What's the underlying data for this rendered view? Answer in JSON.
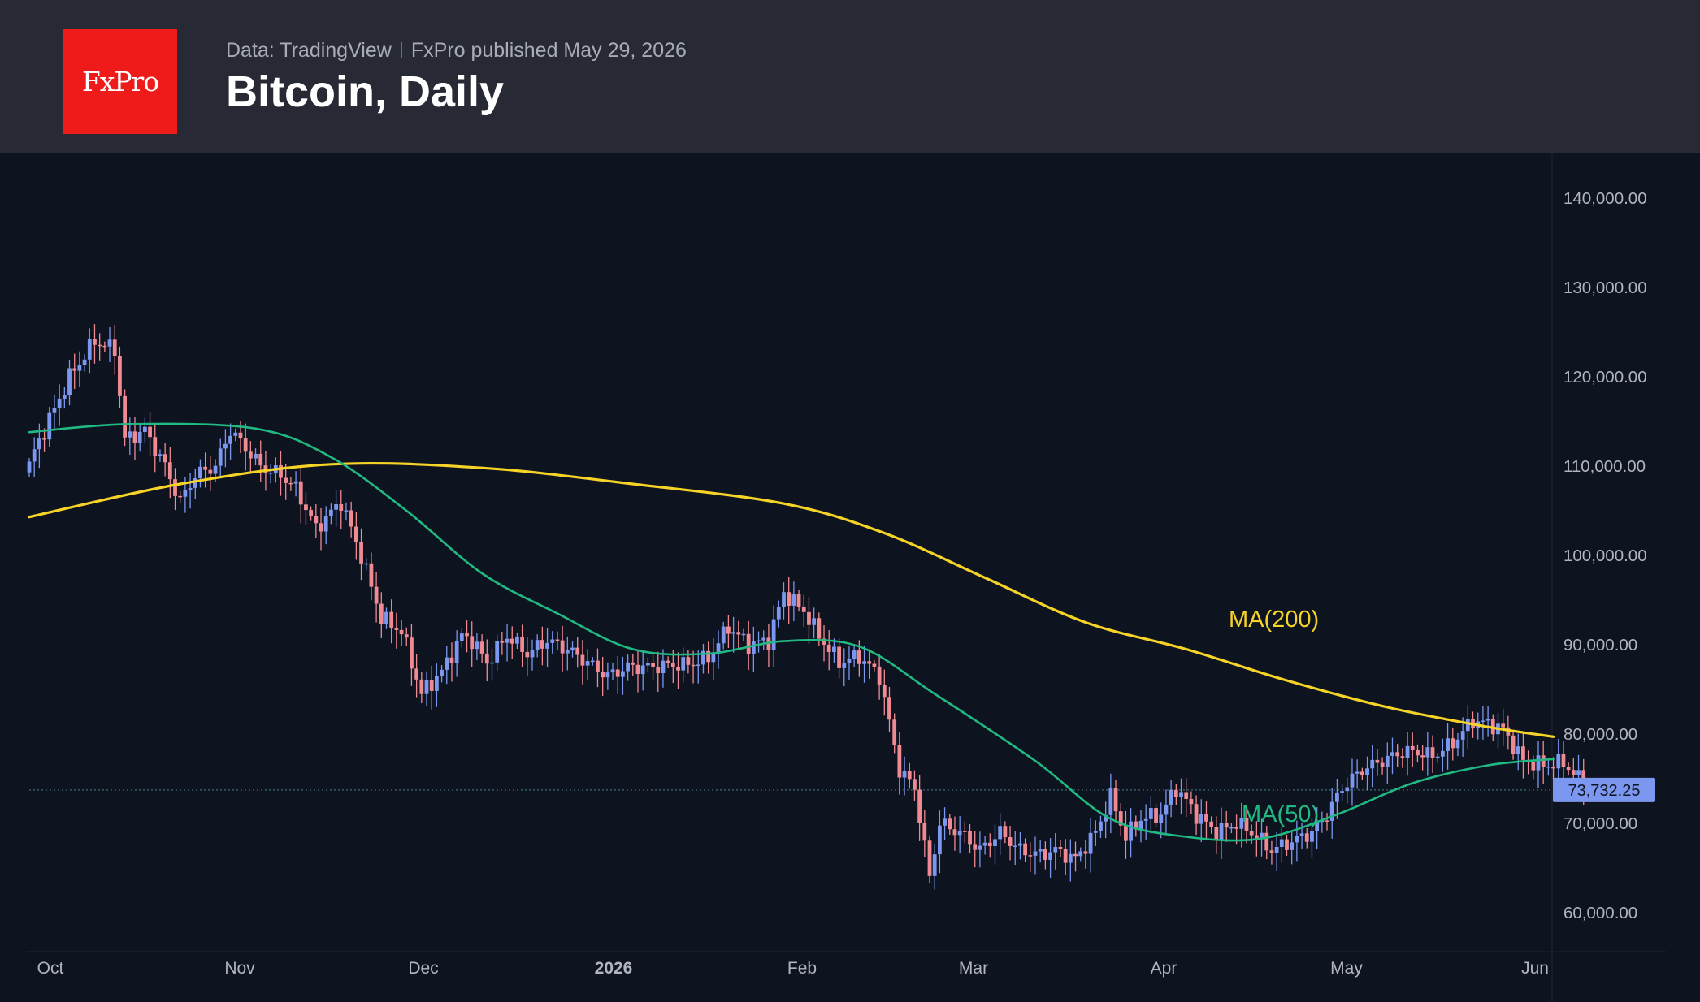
{
  "header": {
    "logo_text": "FxPro",
    "source": "Data: TradingView",
    "published": "FxPro published May 29, 2026",
    "title": "Bitcoin, Daily"
  },
  "colors": {
    "background": "#0e1320",
    "header_bg": "#272a35",
    "logo_bg": "#ef1a1a",
    "candle_up": "#7b97f0",
    "candle_down": "#f08a92",
    "ma200": "#f5d327",
    "ma50": "#21b982",
    "last_price_bg": "#7b97f0"
  },
  "chart_data": {
    "type": "candlestick",
    "symbol": "Bitcoin",
    "timeframe": "Daily",
    "ylim": [
      50000,
      145000
    ],
    "y_ticks": [
      "140,000.00",
      "130,000.00",
      "120,000.00",
      "110,000.00",
      "100,000.00",
      "90,000.00",
      "80,000.00",
      "70,000.00",
      "60,000.00"
    ],
    "x_ticks": [
      {
        "label": "Oct",
        "bold": false
      },
      {
        "label": "Nov",
        "bold": false
      },
      {
        "label": "Dec",
        "bold": false
      },
      {
        "label": "2026",
        "bold": true
      },
      {
        "label": "Feb",
        "bold": false
      },
      {
        "label": "Mar",
        "bold": false
      },
      {
        "label": "Apr",
        "bold": false
      },
      {
        "label": "May",
        "bold": false
      },
      {
        "label": "Jun",
        "bold": false
      }
    ],
    "last_price": 73732.25,
    "last_price_label": "73,732.25",
    "close_waypoints": [
      [
        0,
        110500
      ],
      [
        3,
        114000
      ],
      [
        8,
        120000
      ],
      [
        13,
        124000
      ],
      [
        17,
        123000
      ],
      [
        19,
        113000
      ],
      [
        23,
        114000
      ],
      [
        27,
        110000
      ],
      [
        30,
        106000
      ],
      [
        33,
        109000
      ],
      [
        37,
        110000
      ],
      [
        40,
        114000
      ],
      [
        43,
        112000
      ],
      [
        46,
        110000
      ],
      [
        50,
        109000
      ],
      [
        53,
        107500
      ],
      [
        57,
        103000
      ],
      [
        62,
        106000
      ],
      [
        66,
        100000
      ],
      [
        70,
        93000
      ],
      [
        74,
        91500
      ],
      [
        78,
        84500
      ],
      [
        82,
        87000
      ],
      [
        86,
        91000
      ],
      [
        88,
        90500
      ],
      [
        91,
        88000
      ],
      [
        95,
        91000
      ],
      [
        99,
        89000
      ],
      [
        103,
        90500
      ],
      [
        107,
        89500
      ],
      [
        111,
        88000
      ],
      [
        115,
        86500
      ],
      [
        119,
        87500
      ],
      [
        123,
        87500
      ],
      [
        127,
        87700
      ],
      [
        131,
        87800
      ],
      [
        135,
        88500
      ],
      [
        139,
        92000
      ],
      [
        143,
        90000
      ],
      [
        147,
        90500
      ],
      [
        150,
        95800
      ],
      [
        154,
        93800
      ],
      [
        157,
        91000
      ],
      [
        161,
        88000
      ],
      [
        165,
        88700
      ],
      [
        169,
        86500
      ],
      [
        173,
        76000
      ],
      [
        176,
        74000
      ],
      [
        179,
        64000
      ],
      [
        181,
        70000
      ],
      [
        185,
        69000
      ],
      [
        189,
        67000
      ],
      [
        193,
        69000
      ],
      [
        197,
        67000
      ],
      [
        201,
        66500
      ],
      [
        204,
        67000
      ],
      [
        208,
        66000
      ],
      [
        212,
        69000
      ],
      [
        215,
        73000
      ],
      [
        218,
        68500
      ],
      [
        221,
        70500
      ],
      [
        225,
        71000
      ],
      [
        228,
        74000
      ],
      [
        232,
        71000
      ],
      [
        236,
        69000
      ],
      [
        240,
        70000
      ],
      [
        243,
        69000
      ],
      [
        247,
        67000
      ],
      [
        251,
        68000
      ],
      [
        255,
        69000
      ],
      [
        258,
        71000
      ],
      [
        261,
        74000
      ],
      [
        265,
        76000
      ],
      [
        269,
        77000
      ],
      [
        273,
        78000
      ],
      [
        276,
        78000
      ],
      [
        279,
        77500
      ],
      [
        283,
        79000
      ],
      [
        287,
        81500
      ],
      [
        291,
        81000
      ],
      [
        293,
        80500
      ],
      [
        297,
        77000
      ],
      [
        301,
        76500
      ],
      [
        305,
        76800
      ],
      [
        308,
        75000
      ],
      [
        310,
        73732
      ]
    ],
    "ma200": [
      [
        0,
        104300
      ],
      [
        30,
        108000
      ],
      [
        60,
        110200
      ],
      [
        90,
        109800
      ],
      [
        120,
        108000
      ],
      [
        150,
        105800
      ],
      [
        170,
        102500
      ],
      [
        190,
        97500
      ],
      [
        210,
        92500
      ],
      [
        230,
        89500
      ],
      [
        250,
        86000
      ],
      [
        270,
        83000
      ],
      [
        290,
        80800
      ],
      [
        303,
        79700
      ]
    ],
    "ma50": [
      [
        0,
        113800
      ],
      [
        20,
        114700
      ],
      [
        45,
        114200
      ],
      [
        60,
        111000
      ],
      [
        75,
        105000
      ],
      [
        90,
        98000
      ],
      [
        105,
        93500
      ],
      [
        120,
        89500
      ],
      [
        135,
        89000
      ],
      [
        150,
        90400
      ],
      [
        165,
        89800
      ],
      [
        180,
        84500
      ],
      [
        200,
        77000
      ],
      [
        215,
        70500
      ],
      [
        230,
        68500
      ],
      [
        245,
        68300
      ],
      [
        260,
        71000
      ],
      [
        275,
        74500
      ],
      [
        290,
        76500
      ],
      [
        303,
        77200
      ]
    ],
    "series": [
      {
        "name": "MA(200)",
        "label": "MA(200)",
        "color": "#f5d327"
      },
      {
        "name": "MA(50)",
        "label": "MA(50)",
        "color": "#21b982"
      }
    ]
  }
}
